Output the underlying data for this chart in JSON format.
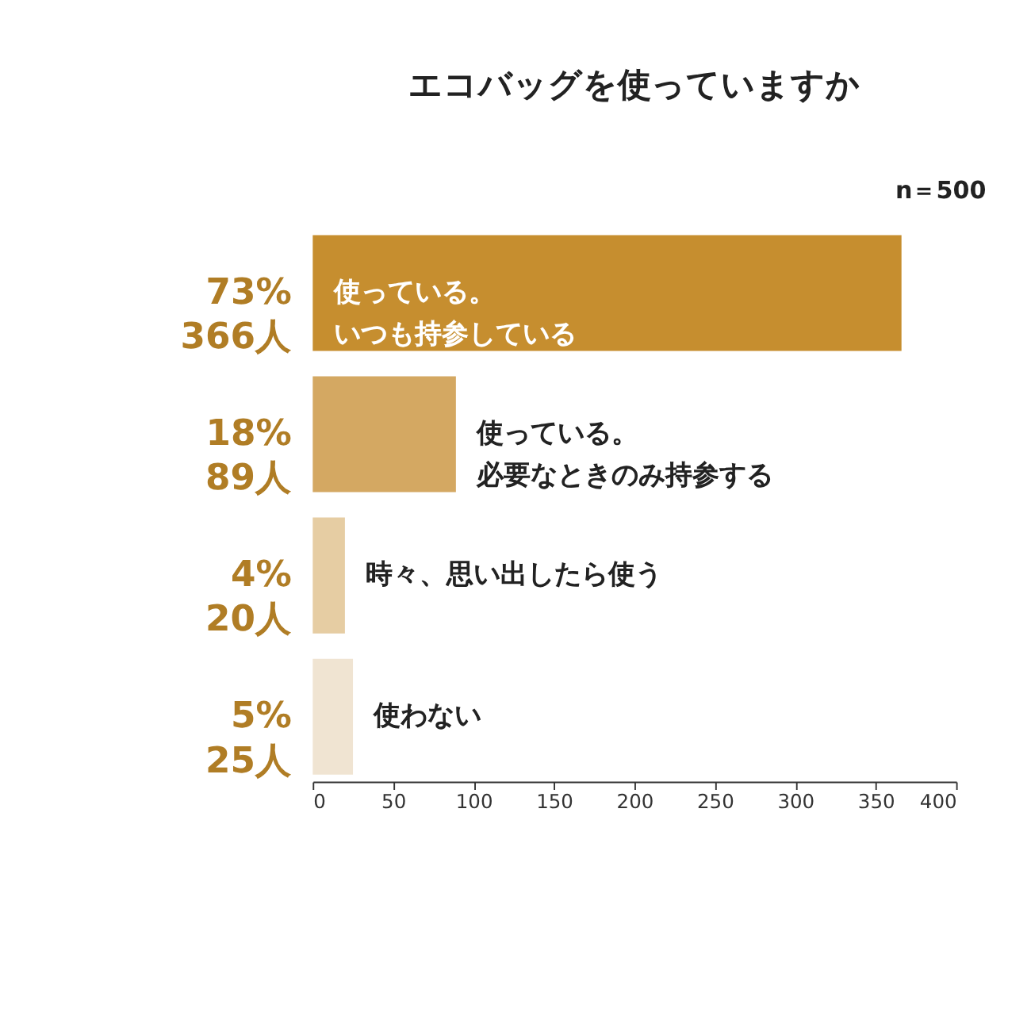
{
  "chart_data": {
    "type": "bar",
    "orientation": "horizontal",
    "title": "エコバッグを使っていますか",
    "annotations": [
      "n＝500"
    ],
    "categories": [
      "使っている。いつも持参している",
      "使っている。必要なときのみ持参する",
      "時々、思い出したら使う",
      "使わない"
    ],
    "values": [
      366,
      89,
      20,
      25
    ],
    "colors": [
      "#c68e2f",
      "#d4a862",
      "#e6cda3",
      "#f0e4d2"
    ],
    "value_labels": [
      "73%\n366人",
      "18%\n89人",
      "4%\n20人",
      "5%\n25人"
    ],
    "xlim": [
      0,
      400
    ],
    "xticks": [
      0,
      50,
      100,
      150,
      200,
      250,
      300,
      350,
      400
    ],
    "grid": false
  }
}
